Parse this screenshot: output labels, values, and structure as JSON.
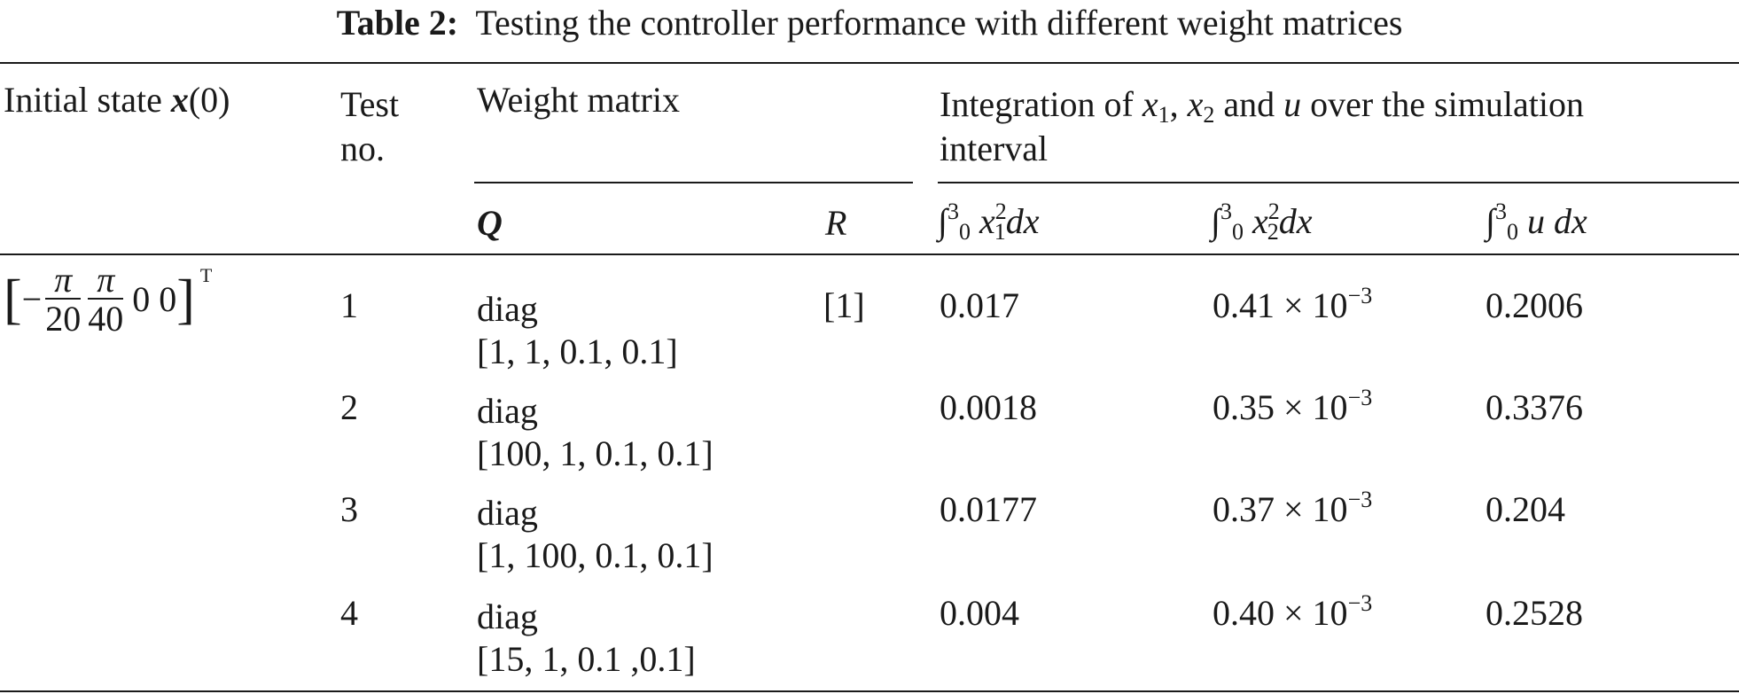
{
  "caption": {
    "label": "Table 2:",
    "text": "Testing the controller performance with different weight matrices"
  },
  "headers": {
    "initial_state": "Initial state",
    "initial_state_symbol": "x",
    "initial_state_arg": "(0)",
    "test_no_line1": "Test",
    "test_no_line2": "no.",
    "weight_matrix": "Weight matrix",
    "integration_part1": "Integration of",
    "integration_x": "x",
    "integration_x1_sub": "1",
    "integration_comma": ",",
    "integration_x2_sub": "2",
    "integration_and": "and",
    "integration_u": "u",
    "integration_part2": "over the simulation",
    "integration_line2": "interval",
    "Q": "Q",
    "R": "R",
    "int_lower": "0",
    "int_upper": "3",
    "col_x1": "x",
    "col_x1_sub": "1",
    "col_x1_sup": "2",
    "col_x2": "x",
    "col_x2_sub": "2",
    "col_x2_sup": "2",
    "col_u": "u",
    "dx": "dx",
    "dx_u": " dx"
  },
  "initial_state_value": {
    "minus": "−",
    "pi": "π",
    "den1": "20",
    "den2": "40",
    "zeros": "0 0",
    "transpose": "T"
  },
  "rows": [
    {
      "test_no": "1",
      "q_line1": "diag",
      "q_line2": "[1, 1, 0.1, 0.1]",
      "r": "[1]",
      "int_x1": "0.017",
      "int_x2_mant": "0.41 × 10",
      "int_x2_exp": "−3",
      "int_u": "0.2006"
    },
    {
      "test_no": "2",
      "q_line1": "diag",
      "q_line2": "[100, 1, 0.1, 0.1]",
      "r": "",
      "int_x1": "0.0018",
      "int_x2_mant": "0.35 × 10",
      "int_x2_exp": "−3",
      "int_u": "0.3376"
    },
    {
      "test_no": "3",
      "q_line1": "diag",
      "q_line2": "[1, 100, 0.1, 0.1]",
      "r": "",
      "int_x1": "0.0177",
      "int_x2_mant": "0.37 × 10",
      "int_x2_exp": "−3",
      "int_u": "0.204"
    },
    {
      "test_no": "4",
      "q_line1": "diag",
      "q_line2": "[15, 1, 0.1 ,0.1]",
      "r": "",
      "int_x1": "0.004",
      "int_x2_mant": "0.40 × 10",
      "int_x2_exp": "−3",
      "int_u": "0.2528"
    }
  ]
}
